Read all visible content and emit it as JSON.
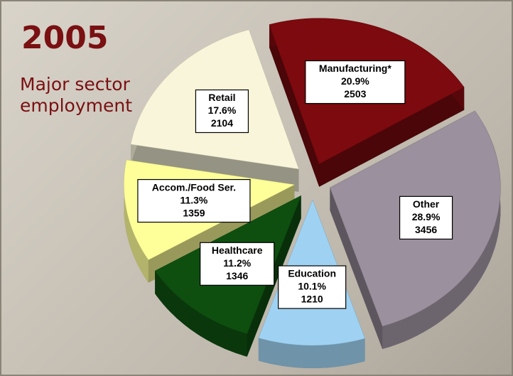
{
  "chart_data": {
    "type": "pie",
    "title": "2005",
    "subtitle": "Major sector employment",
    "categories": [
      "Manufacturing*",
      "Other",
      "Education",
      "Healthcare",
      "Accom./Food Ser.",
      "Retail"
    ],
    "values": [
      2503,
      3456,
      1210,
      1346,
      1359,
      2104
    ],
    "percents": [
      20.9,
      28.9,
      10.1,
      11.2,
      11.3,
      17.6
    ],
    "percent_labels": [
      "20.9%",
      "28.9%",
      "10.1%",
      "11.2%",
      "11.3%",
      "17.6%"
    ],
    "colors": [
      "#7c0a0e",
      "#9b909d",
      "#9fd2f2",
      "#0e4f10",
      "#ffff99",
      "#f9f5da"
    ]
  }
}
